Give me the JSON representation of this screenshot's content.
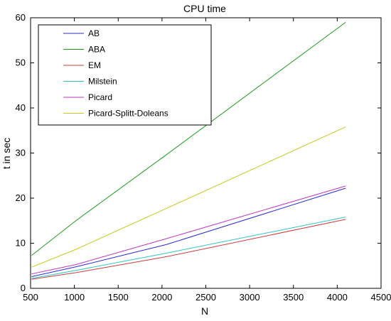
{
  "chart_data": {
    "type": "line",
    "title": "CPU time",
    "xlabel": "N",
    "ylabel": "t in sec",
    "xlim": [
      500,
      4500
    ],
    "ylim": [
      0,
      60
    ],
    "xticks": [
      500,
      1000,
      1500,
      2000,
      2500,
      3000,
      3500,
      4000,
      4500
    ],
    "yticks": [
      0,
      10,
      20,
      30,
      40,
      50,
      60
    ],
    "legend_position": "top-left",
    "x": [
      512,
      1024,
      2048,
      4096
    ],
    "series": [
      {
        "name": "AB",
        "color": "#2a2ad4",
        "values": [
          2.6,
          4.8,
          9.7,
          22.2
        ]
      },
      {
        "name": "ABA",
        "color": "#1e9a1e",
        "values": [
          7.3,
          15.1,
          29.6,
          59.0
        ]
      },
      {
        "name": "EM",
        "color": "#cc3b3b",
        "values": [
          2.0,
          3.5,
          7.0,
          15.3
        ]
      },
      {
        "name": "Milstein",
        "color": "#2ec4c4",
        "values": [
          2.2,
          4.0,
          7.8,
          15.8
        ]
      },
      {
        "name": "Picard",
        "color": "#c236c2",
        "values": [
          3.2,
          5.3,
          11.0,
          22.7
        ]
      },
      {
        "name": "Picard-Splitt-Doleans",
        "color": "#c8c81e",
        "values": [
          4.7,
          8.7,
          17.7,
          35.8
        ]
      }
    ]
  }
}
